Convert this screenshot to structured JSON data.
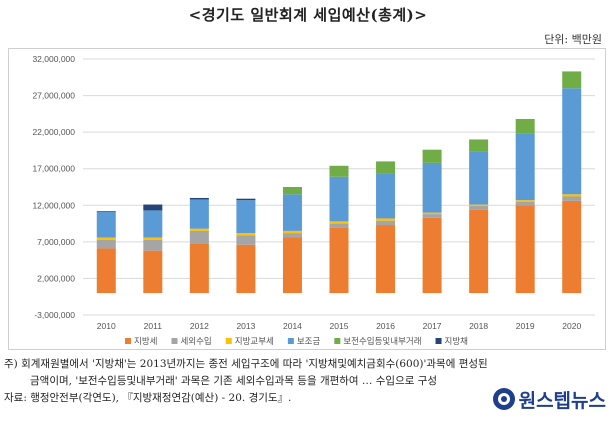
{
  "title": "<경기도 일반회계 세입예산(총계)>",
  "unit": "단위: 백만원",
  "notes": {
    "line1": "주) 회계재원별에서 '지방채'는 2013년까지는 종전 세입구조에 따라 '지방채및예치금회수(600)'과목에 편성된",
    "line2": "금액이며, '보전수입등및내부거래' 과목은 기존 세외수입과목 등을 개편하여 … 수입으로 구성",
    "line3": "자료: 행정안전부(각연도), 『지방재정연감(예산) - 20. 경기도』."
  },
  "logo": {
    "text": "원스텝뉴스",
    "icon": "onestep-logo-icon"
  },
  "chart_data": {
    "type": "bar",
    "stacked": true,
    "categories": [
      "2010",
      "2011",
      "2012",
      "2013",
      "2014",
      "2015",
      "2016",
      "2017",
      "2018",
      "2019",
      "2020"
    ],
    "ylim": [
      -3000000,
      32000000
    ],
    "yticks": [
      -3000000,
      2000000,
      7000000,
      12000000,
      17000000,
      22000000,
      27000000,
      32000000
    ],
    "ytick_labels": [
      "-3,000,000",
      "2,000,000",
      "7,000,000",
      "12,000,000",
      "17,000,000",
      "22,000,000",
      "27,000,000",
      "32,000,000"
    ],
    "grid": true,
    "legend_position": "bottom",
    "series": [
      {
        "name": "지방세",
        "color": "#ed7d31",
        "values": [
          6100000,
          5800000,
          6800000,
          6600000,
          7600000,
          8900000,
          9300000,
          10300000,
          11400000,
          12000000,
          12600000
        ]
      },
      {
        "name": "세외수입",
        "color": "#a5a5a5",
        "values": [
          1200000,
          1500000,
          1700000,
          1300000,
          600000,
          600000,
          600000,
          500000,
          500000,
          500000,
          600000
        ]
      },
      {
        "name": "지방교부세",
        "color": "#ffc000",
        "values": [
          300000,
          300000,
          300000,
          300000,
          300000,
          300000,
          300000,
          200000,
          200000,
          200000,
          300000
        ]
      },
      {
        "name": "보조금",
        "color": "#5b9bd5",
        "values": [
          3500000,
          3700000,
          4000000,
          4500000,
          5000000,
          6100000,
          6200000,
          6800000,
          7200000,
          9100000,
          14500000
        ]
      },
      {
        "name": "보전수입등및내부거래",
        "color": "#70ad47",
        "values": [
          0,
          0,
          0,
          0,
          1000000,
          1500000,
          1600000,
          1800000,
          1700000,
          2000000,
          2300000
        ]
      },
      {
        "name": "지방채",
        "color": "#264478",
        "values": [
          100000,
          800000,
          200000,
          200000,
          0,
          0,
          0,
          0,
          0,
          0,
          0
        ]
      }
    ]
  }
}
